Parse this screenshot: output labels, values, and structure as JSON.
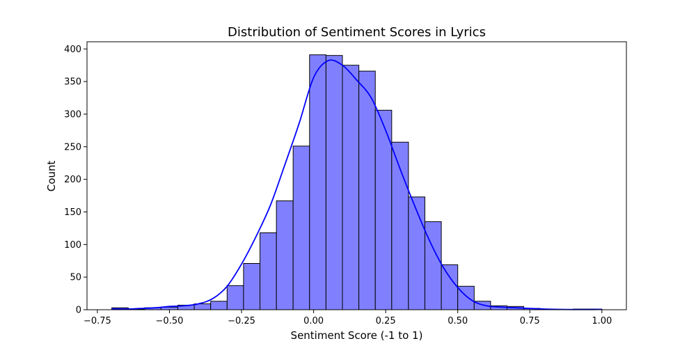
{
  "colors": {
    "bar_fill": "#8080ff",
    "bar_edge": "#000000",
    "kde_line": "#0000ff",
    "axes": "#000000",
    "background": "#ffffff"
  },
  "chart_data": {
    "type": "bar",
    "subtype": "histogram-with-kde",
    "title": "Distribution of Sentiment Scores in Lyrics",
    "xlabel": "Sentiment Score (-1 to 1)",
    "ylabel": "Count",
    "xlim": [
      -0.786,
      1.085
    ],
    "ylim": [
      0,
      411
    ],
    "grid": false,
    "legend": "none",
    "x_ticks": [
      -0.75,
      -0.5,
      -0.25,
      0.0,
      0.25,
      0.5,
      0.75,
      1.0
    ],
    "x_tick_labels": [
      "−0.75",
      "−0.50",
      "−0.25",
      "0.00",
      "0.25",
      "0.50",
      "0.75",
      "1.00"
    ],
    "y_ticks": [
      0,
      50,
      100,
      150,
      200,
      250,
      300,
      350,
      400
    ],
    "y_tick_labels": [
      "0",
      "50",
      "100",
      "150",
      "200",
      "250",
      "300",
      "350",
      "400"
    ],
    "bin_edges": [
      -0.7,
      -0.643,
      -0.586,
      -0.529,
      -0.471,
      -0.414,
      -0.357,
      -0.3,
      -0.243,
      -0.186,
      -0.129,
      -0.071,
      -0.014,
      0.043,
      0.1,
      0.157,
      0.214,
      0.271,
      0.329,
      0.386,
      0.443,
      0.5,
      0.557,
      0.614,
      0.671,
      0.729,
      0.786,
      0.843,
      0.9,
      0.957,
      1.0
    ],
    "counts": [
      3,
      1,
      3,
      4,
      7,
      9,
      13,
      37,
      71,
      118,
      167,
      251,
      391,
      390,
      375,
      366,
      306,
      257,
      173,
      135,
      69,
      36,
      13,
      6,
      5,
      2,
      1,
      0,
      1,
      1
    ],
    "kde": {
      "x": [
        -0.7,
        -0.65,
        -0.6,
        -0.55,
        -0.5,
        -0.45,
        -0.4,
        -0.35,
        -0.3,
        -0.25,
        -0.2,
        -0.15,
        -0.1,
        -0.05,
        0.0,
        0.05,
        0.1,
        0.15,
        0.2,
        0.25,
        0.3,
        0.35,
        0.4,
        0.45,
        0.5,
        0.55,
        0.6,
        0.65,
        0.7,
        0.75,
        0.8,
        0.85,
        0.9,
        0.95,
        1.0
      ],
      "y": [
        1.5,
        1,
        2,
        3,
        5,
        6,
        9,
        17,
        36,
        70,
        112,
        160,
        222,
        286,
        356,
        382,
        375,
        352,
        325,
        275,
        216,
        160,
        108,
        65,
        34,
        14,
        6,
        4,
        3,
        2,
        1,
        0.5,
        0.3,
        0.3,
        0.5
      ]
    }
  }
}
